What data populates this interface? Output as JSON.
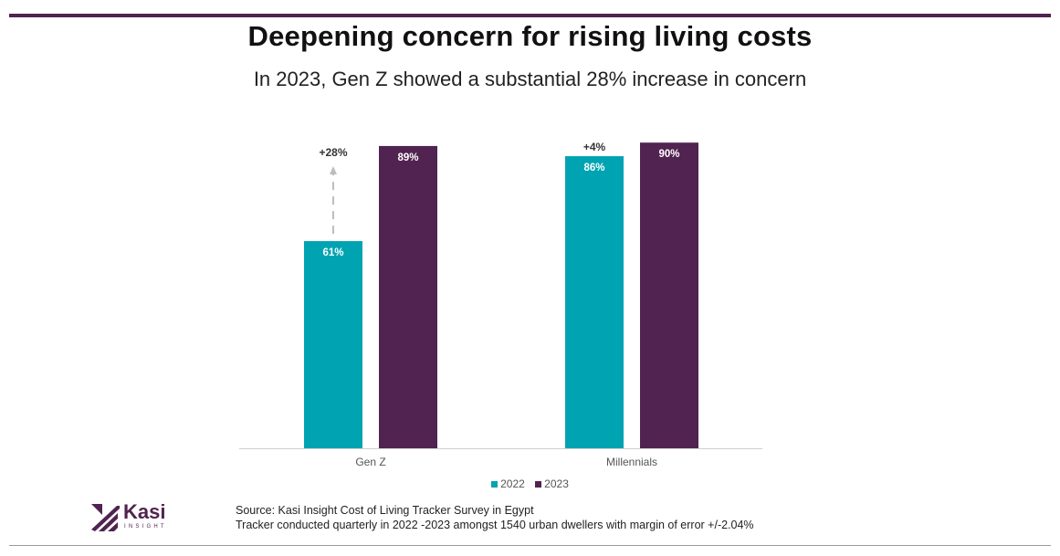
{
  "title": "Deepening concern for rising living costs",
  "subtitle": "In 2023, Gen Z showed a substantial 28% increase in concern",
  "colors": {
    "accent": "#512350",
    "series_2022": "#00A3B1",
    "series_2023": "#512350"
  },
  "chart_data": {
    "type": "bar",
    "categories": [
      "Gen Z",
      "Millennials"
    ],
    "series": [
      {
        "name": "2022",
        "values": [
          61,
          86
        ],
        "labels": [
          "61%",
          "86%"
        ]
      },
      {
        "name": "2023",
        "values": [
          89,
          90
        ],
        "labels": [
          "89%",
          "90%"
        ]
      }
    ],
    "annotations": [
      "+28%",
      "+4%"
    ],
    "ylim": [
      0,
      100
    ],
    "xlabel": "",
    "ylabel": "",
    "legend": "bottom-center",
    "grid": false
  },
  "footer": {
    "logo_name": "Kasi",
    "logo_sub": "INSIGHT",
    "source_line1": "Source: Kasi Insight Cost of Living Tracker Survey  in Egypt",
    "source_line2": "Tracker conducted quarterly in 2022 -2023 amongst 1540 urban dwellers with margin of error +/-2.04%"
  }
}
